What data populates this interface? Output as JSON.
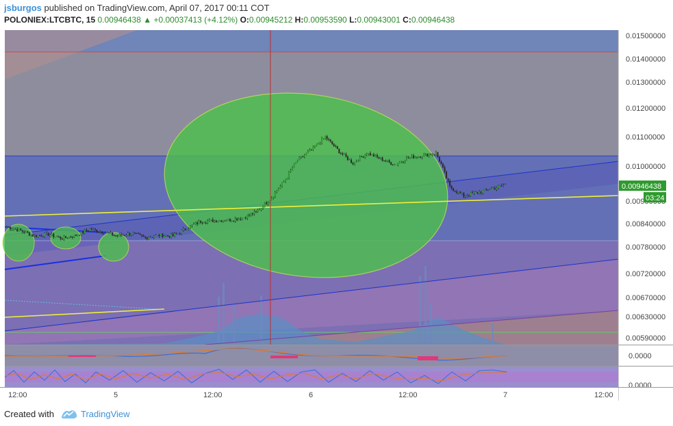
{
  "header": {
    "author": "jsburgos",
    "published_text": "published on TradingView.com, April 07, 2017 00:11 COT",
    "symbol": "POLONIEX:LTCBTC, 15",
    "last": "0.00946438",
    "change": "+0.00037413 (+4.12%)",
    "o_label": "O:",
    "o_value": "0.00945212",
    "h_label": "H:",
    "h_value": "0.00953590",
    "l_label": "L:",
    "l_value": "0.00943001",
    "c_label": "C:",
    "c_value": "0.00946438"
  },
  "footer": {
    "created_with": "Created with",
    "brand": "TradingView"
  },
  "chart_data": {
    "type": "candlestick",
    "symbol": "POLONIEX:LTCBTC",
    "interval": "15",
    "price_axis_ticks": [
      "0.01500000",
      "0.01400000",
      "0.01300000",
      "0.01200000",
      "0.01100000",
      "0.01000000",
      "0.00900000",
      "0.00840000",
      "0.00780000",
      "0.00720000",
      "0.00670000",
      "0.00630000",
      "0.00590000"
    ],
    "time_axis_ticks": [
      "12:00",
      "5",
      "12:00",
      "6",
      "12:00",
      "7",
      "12:00"
    ],
    "current_price_label": "0.00946438",
    "countdown_label": "03:24",
    "indicator1_label": "0.0000",
    "indicator2_label": "0.0000",
    "price_series": [
      [
        "0:00",
        0.00832
      ],
      [
        "2:00",
        0.00822
      ],
      [
        "4:00",
        0.00808
      ],
      [
        "6:00",
        0.00812
      ],
      [
        "8:00",
        0.00802
      ],
      [
        "10:00",
        0.0081
      ],
      [
        "12:00",
        0.00826
      ],
      [
        "14:00",
        0.00818
      ],
      [
        "16:00",
        0.00808
      ],
      [
        "18:00",
        0.00815
      ],
      [
        "20:00",
        0.00804
      ],
      [
        "22:00",
        0.0081
      ],
      [
        "Apr 5 0:00",
        0.00808
      ],
      [
        "2:00",
        0.00828
      ],
      [
        "4:00",
        0.00846
      ],
      [
        "6:00",
        0.00848
      ],
      [
        "8:00",
        0.0085
      ],
      [
        "10:00",
        0.00855
      ],
      [
        "12:00",
        0.0087
      ],
      [
        "14:00",
        0.00905
      ],
      [
        "16:00",
        0.00955
      ],
      [
        "18:00",
        0.0102
      ],
      [
        "20:00",
        0.01055
      ],
      [
        "22:00",
        0.011
      ],
      [
        "Apr 6 0:00",
        0.0105
      ],
      [
        "2:00",
        0.0101
      ],
      [
        "4:00",
        0.01045
      ],
      [
        "6:00",
        0.01025
      ],
      [
        "8:00",
        0.01005
      ],
      [
        "10:00",
        0.0103
      ],
      [
        "12:00",
        0.01035
      ],
      [
        "14:00",
        0.01045
      ],
      [
        "16:00",
        0.0094
      ],
      [
        "18:00",
        0.00915
      ],
      [
        "20:00",
        0.00925
      ],
      [
        "22:00",
        0.00935
      ],
      [
        "Apr 7 0:00",
        0.00946
      ]
    ],
    "colors": {
      "up_candle": "#2f9a2f",
      "down_candle": "#2b2b2b",
      "highlight_ellipse": "#4dbf4d",
      "trend_line_yellow": "#e7e72e",
      "channel_blue": "#1b32c9",
      "price_label_bg": "#2d9b2d"
    }
  }
}
